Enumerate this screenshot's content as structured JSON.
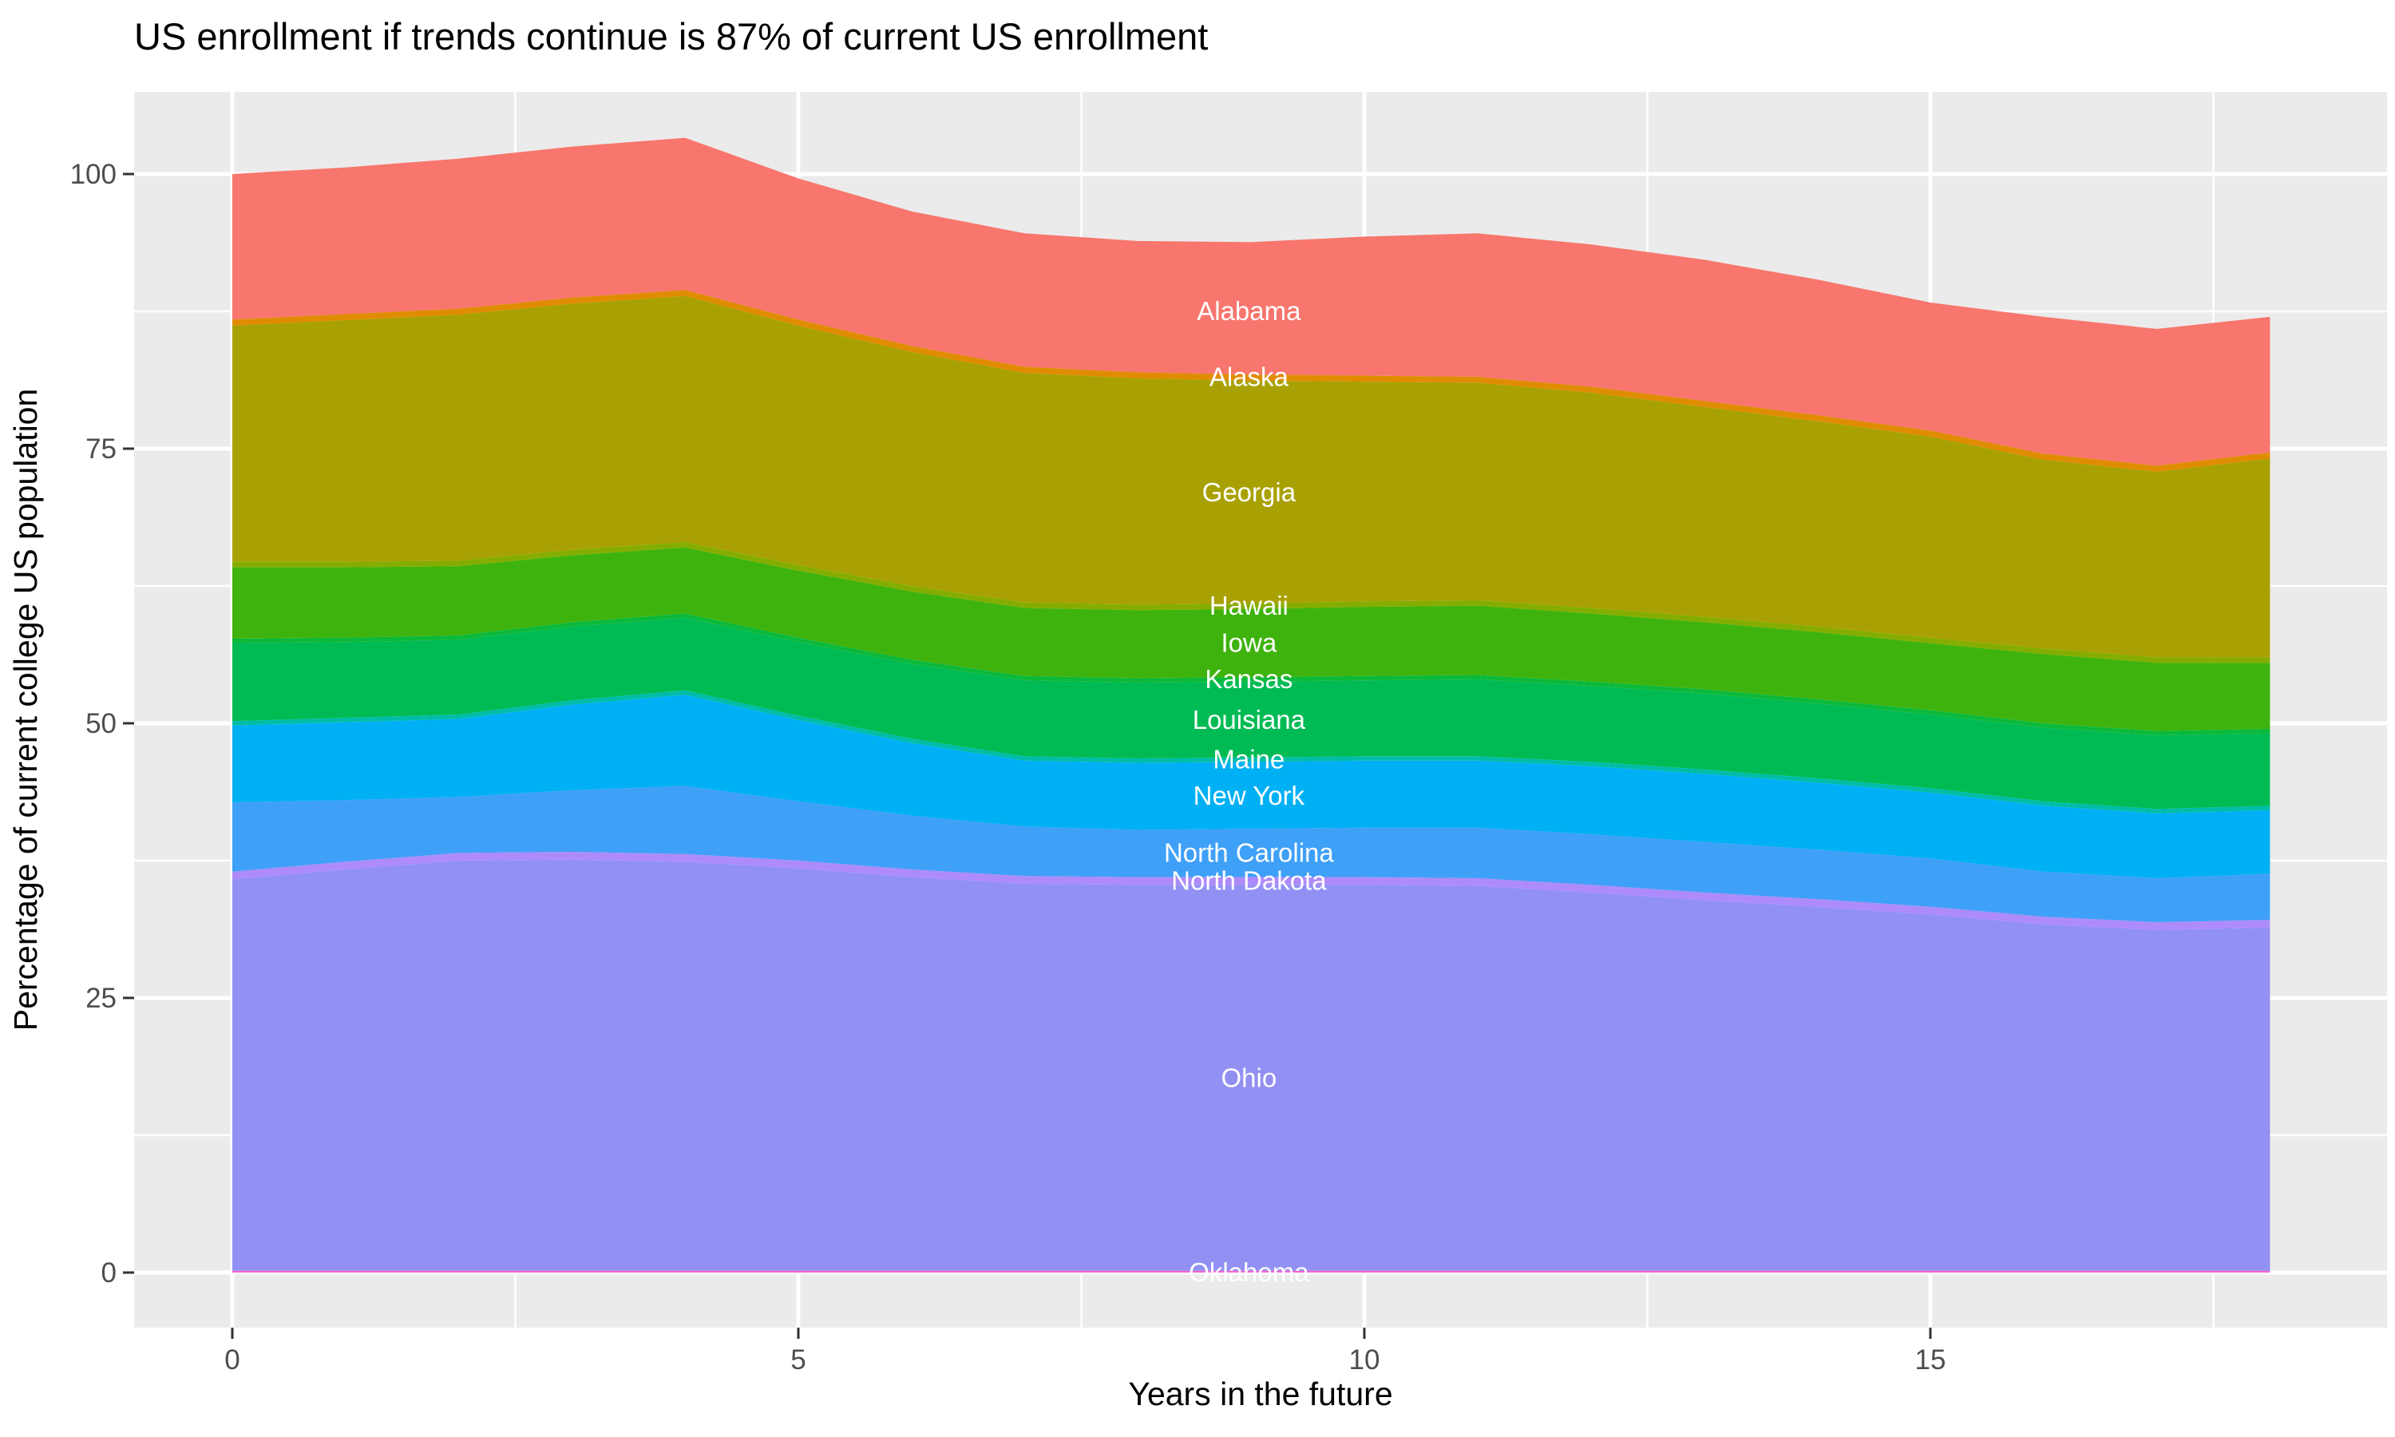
{
  "title": "US enrollment if trends continue is 87% of current US enrollment",
  "x_axis_title": "Years in the future",
  "y_axis_title": "Percentage of current college US population",
  "colors": {
    "panel_background": "#EBEBEB",
    "gridline": "#FFFFFF",
    "tick_mark": "#333333",
    "tick_label": "#4D4D4D",
    "title_text": "#000000",
    "state_label_text": "#FFFFFF"
  },
  "chart_data": {
    "type": "area",
    "stacked": true,
    "title": "US enrollment if trends continue is 87% of current US enrollment",
    "xlabel": "Years in the future",
    "ylabel": "Percentage of current college US population",
    "x": [
      0,
      1,
      2,
      3,
      4,
      5,
      6,
      7,
      8,
      9,
      10,
      11,
      12,
      13,
      14,
      15,
      16,
      17,
      18
    ],
    "x_ticks": [
      {
        "label": "0",
        "x": 0
      },
      {
        "label": "5",
        "x": 5
      },
      {
        "label": "10",
        "x": 10
      },
      {
        "label": "15",
        "x": 15
      }
    ],
    "y_ticks": [
      {
        "label": "0",
        "v": 0
      },
      {
        "label": "25",
        "v": 25
      },
      {
        "label": "50",
        "v": 50
      },
      {
        "label": "75",
        "v": 75
      },
      {
        "label": "100",
        "v": 100
      }
    ],
    "x_minor_ticks": [
      2.5,
      7.5,
      12.5,
      17.5
    ],
    "y_minor_ticks": [
      12.5,
      37.5,
      62.5,
      87.5
    ],
    "xlim": [
      -0.87,
      18.87
    ],
    "ylim": [
      -5.0,
      107.5
    ],
    "grid": "on",
    "legend": "none",
    "boundaries_note": "cumulative stack boundaries, percent of current US college population",
    "boundaries": {
      "oklahoma_top": [
        0.15,
        0.15,
        0.15,
        0.15,
        0.15,
        0.15,
        0.15,
        0.15,
        0.15,
        0.15,
        0.15,
        0.15,
        0.15,
        0.15,
        0.15,
        0.15,
        0.15,
        0.15,
        0.15
      ],
      "ohio_top": [
        35.8,
        36.7,
        37.5,
        37.6,
        37.4,
        36.8,
        36.0,
        35.4,
        35.3,
        35.3,
        35.3,
        35.2,
        34.6,
        33.9,
        33.3,
        32.6,
        31.7,
        31.2,
        31.4
      ],
      "ncarolina_top": [
        42.8,
        43.0,
        43.3,
        43.9,
        44.3,
        42.9,
        41.6,
        40.6,
        40.3,
        40.4,
        40.5,
        40.5,
        39.9,
        39.2,
        38.5,
        37.7,
        36.5,
        35.9,
        36.3
      ],
      "newyork_top": [
        49.8,
        50.1,
        50.4,
        51.7,
        52.6,
        50.3,
        48.2,
        46.6,
        46.4,
        46.5,
        46.6,
        46.6,
        46.1,
        45.4,
        44.6,
        43.7,
        42.5,
        41.8,
        42.1
      ],
      "louisiana_top": [
        57.3,
        57.4,
        57.6,
        58.8,
        59.6,
        57.4,
        55.4,
        53.9,
        53.7,
        53.8,
        53.9,
        54.0,
        53.4,
        52.7,
        51.8,
        50.8,
        49.6,
        48.9,
        49.1
      ],
      "iowa_top": [
        64.2,
        64.2,
        64.3,
        65.3,
        66.0,
        63.9,
        62.0,
        60.5,
        60.3,
        60.4,
        60.6,
        60.7,
        60.0,
        59.2,
        58.3,
        57.3,
        56.3,
        55.5,
        55.5
      ],
      "georgia_top": [
        86.2,
        86.7,
        87.2,
        88.2,
        88.9,
        86.2,
        83.8,
        81.9,
        81.4,
        81.2,
        81.1,
        81.0,
        80.1,
        78.8,
        77.5,
        76.1,
        74.0,
        72.9,
        74.1
      ],
      "total": [
        100.0,
        100.6,
        101.4,
        102.5,
        103.3,
        99.6,
        96.6,
        94.6,
        93.9,
        93.8,
        94.3,
        94.6,
        93.6,
        92.2,
        90.4,
        88.3,
        87.0,
        85.9,
        87.0
      ]
    },
    "sliver_widths": {
      "alaska": 0.55,
      "hawaii": 0.5,
      "kansas": 0.4,
      "maine": 0.4,
      "north_dakota": 0.7
    },
    "bands": [
      {
        "name": "Oklahoma",
        "color": "#F763C9",
        "lower": "zero",
        "lower_off": 0,
        "upper": "oklahoma_top",
        "upper_off": 0
      },
      {
        "name": "Ohio",
        "color": "#9290F3",
        "lower": "oklahoma_top",
        "lower_off": 0,
        "upper": "ohio_top",
        "upper_off": 0
      },
      {
        "name": "North Dakota",
        "color": "#AE8BFA",
        "lower": "ohio_top",
        "lower_off": 0,
        "upper": "ohio_top",
        "upper_off": 0.7
      },
      {
        "name": "North Carolina",
        "color": "#3FA0F8",
        "lower": "ohio_top",
        "lower_off": 0.7,
        "upper": "ncarolina_top",
        "upper_off": 0
      },
      {
        "name": "New York",
        "color": "#00B0F5",
        "lower": "ncarolina_top",
        "lower_off": 0,
        "upper": "newyork_top",
        "upper_off": 0
      },
      {
        "name": "Maine",
        "color": "#00BDA8",
        "lower": "newyork_top",
        "lower_off": 0,
        "upper": "newyork_top",
        "upper_off": 0.4
      },
      {
        "name": "Louisiana",
        "color": "#00BB54",
        "lower": "newyork_top",
        "lower_off": 0.4,
        "upper": "louisiana_top",
        "upper_off": 0
      },
      {
        "name": "Kansas",
        "color": "#0CB93A",
        "lower": "louisiana_top",
        "lower_off": 0,
        "upper": "louisiana_top",
        "upper_off": 0.4
      },
      {
        "name": "Iowa",
        "color": "#3FB30D",
        "lower": "louisiana_top",
        "lower_off": 0.4,
        "upper": "iowa_top",
        "upper_off": 0
      },
      {
        "name": "Hawaii",
        "color": "#84AD00",
        "lower": "iowa_top",
        "lower_off": 0,
        "upper": "iowa_top",
        "upper_off": 0.5
      },
      {
        "name": "Georgia",
        "color": "#A9A104",
        "lower": "iowa_top",
        "lower_off": 0.5,
        "upper": "georgia_top",
        "upper_off": 0
      },
      {
        "name": "Alaska",
        "color": "#E08C00",
        "lower": "georgia_top",
        "lower_off": 0,
        "upper": "georgia_top",
        "upper_off": 0.55
      },
      {
        "name": "Alabama",
        "color": "#F8766D",
        "lower": "georgia_top",
        "lower_off": 0.55,
        "upper": "total",
        "upper_off": 0
      }
    ],
    "annotations": [
      {
        "text": "Alabama",
        "x": 8.98,
        "v": 87.5
      },
      {
        "text": "Alaska",
        "x": 8.98,
        "v": 81.5
      },
      {
        "text": "Georgia",
        "x": 8.98,
        "v": 71.0
      },
      {
        "text": "Hawaii",
        "x": 8.98,
        "v": 60.7
      },
      {
        "text": "Iowa",
        "x": 8.98,
        "v": 57.3
      },
      {
        "text": "Kansas",
        "x": 8.98,
        "v": 54.0
      },
      {
        "text": "Louisiana",
        "x": 8.98,
        "v": 50.3
      },
      {
        "text": "Maine",
        "x": 8.98,
        "v": 46.7
      },
      {
        "text": "New York",
        "x": 8.98,
        "v": 43.4
      },
      {
        "text": "North Carolina",
        "x": 8.98,
        "v": 38.2
      },
      {
        "text": "North Dakota",
        "x": 8.98,
        "v": 35.65
      },
      {
        "text": "Ohio",
        "x": 8.98,
        "v": 17.7
      },
      {
        "text": "Oklahoma",
        "x": 8.98,
        "v": 0.0
      }
    ]
  }
}
